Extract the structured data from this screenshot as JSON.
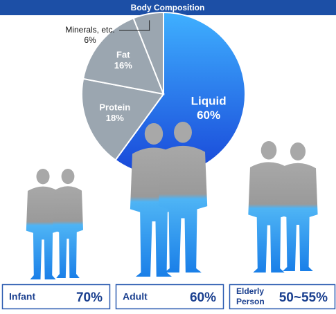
{
  "chart_data": {
    "type": "pie",
    "title": "Body Composition",
    "categories": [
      "Liquid",
      "Protein",
      "Fat",
      "Minerals, etc."
    ],
    "values": [
      60,
      18,
      16,
      6
    ],
    "value_labels": [
      "60%",
      "18%",
      "16%",
      "6%"
    ],
    "colors": [
      "#2b8cf0",
      "#9ba6b0",
      "#9ba6b0",
      "#9ba6b0"
    ]
  },
  "panels": [
    {
      "label": "Infant",
      "value": "70%"
    },
    {
      "label": "Adult",
      "value": "60%"
    },
    {
      "label": "Elderly Person",
      "value": "50~55%"
    }
  ]
}
